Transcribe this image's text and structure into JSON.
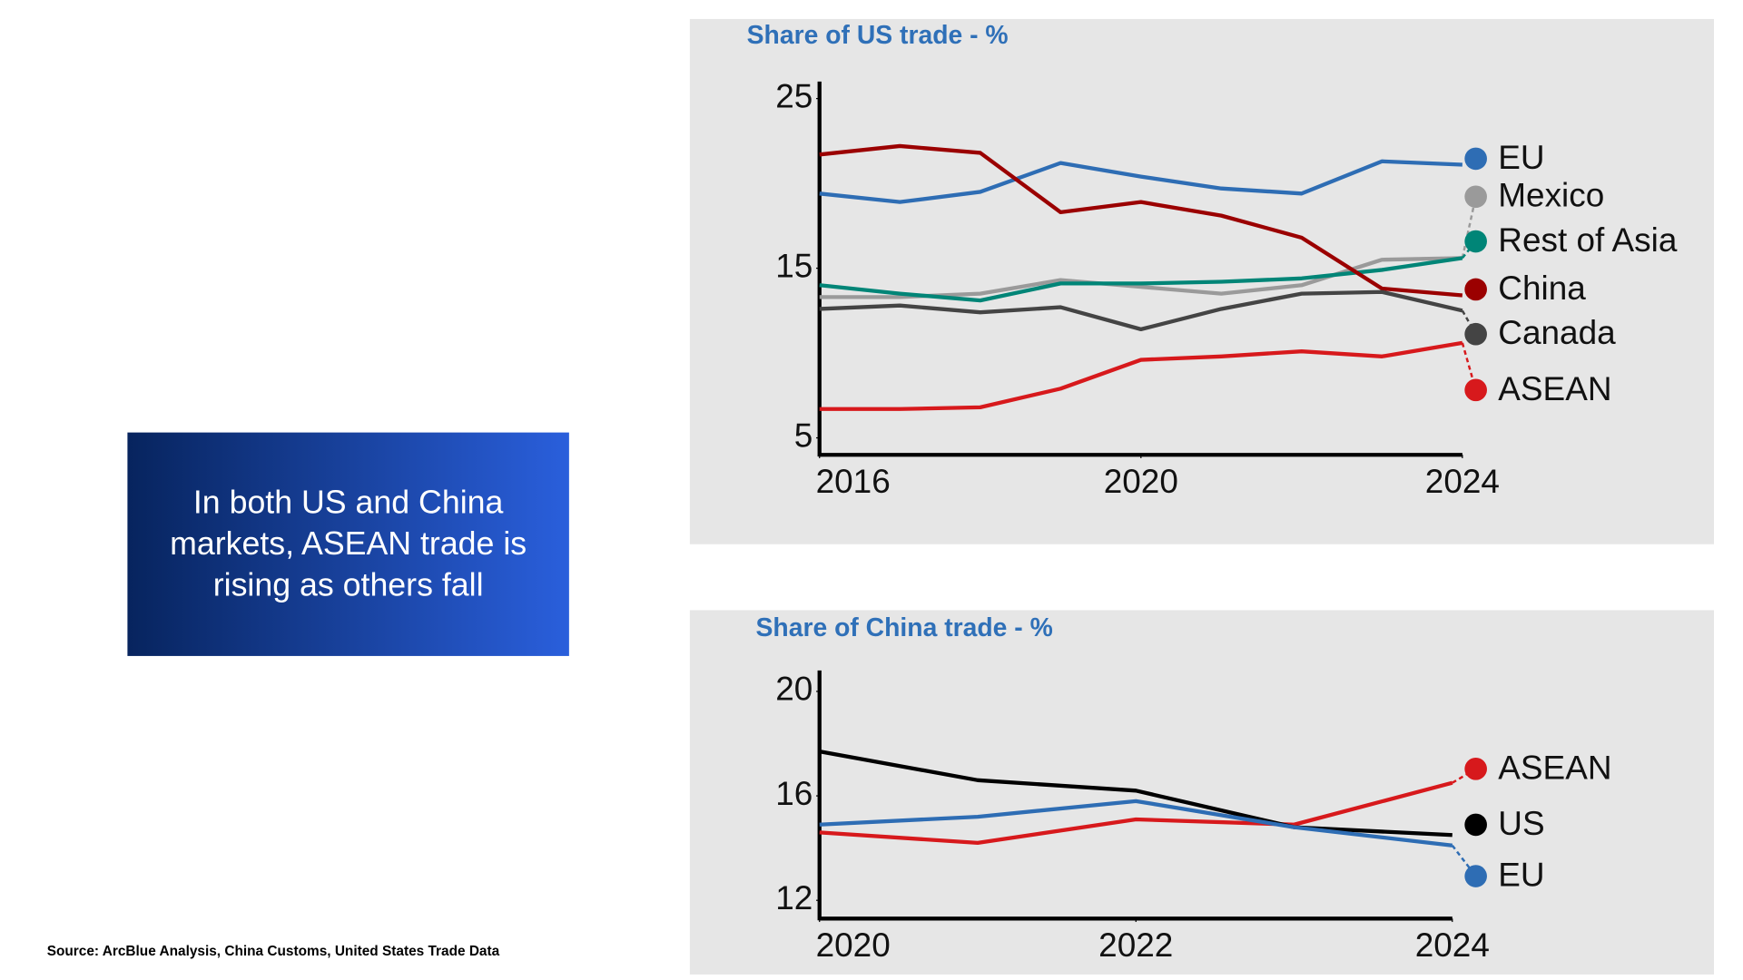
{
  "callout": "In both US and China markets, ASEAN trade is rising as others fall",
  "source": "Source: ArcBlue Analysis, China Customs, United States Trade Data",
  "chart_data": [
    {
      "type": "line",
      "title": "Share of US trade - %",
      "x": [
        2016,
        2017,
        2018,
        2019,
        2020,
        2021,
        2022,
        2023,
        2024
      ],
      "xlim": [
        2016,
        2024
      ],
      "xticks": [
        2016,
        2020,
        2024
      ],
      "ylim": [
        4,
        26
      ],
      "yticks": [
        5,
        15,
        25
      ],
      "series": [
        {
          "name": "EU",
          "color": "#2e6db4",
          "values": [
            19.4,
            18.9,
            19.5,
            21.2,
            20.4,
            19.7,
            19.4,
            21.3,
            21.1
          ]
        },
        {
          "name": "Mexico",
          "color": "#9a9a9a",
          "values": [
            13.3,
            13.3,
            13.5,
            14.3,
            13.9,
            13.5,
            14.0,
            15.5,
            15.6
          ]
        },
        {
          "name": "Rest of Asia",
          "color": "#008577",
          "values": [
            14.0,
            13.5,
            13.1,
            14.1,
            14.1,
            14.2,
            14.4,
            14.9,
            15.6
          ]
        },
        {
          "name": "China",
          "color": "#9b0000",
          "values": [
            21.7,
            22.2,
            21.8,
            18.3,
            18.9,
            18.1,
            16.8,
            13.8,
            13.4
          ]
        },
        {
          "name": "Canada",
          "color": "#444444",
          "values": [
            12.6,
            12.8,
            12.4,
            12.7,
            11.4,
            12.6,
            13.5,
            13.6,
            12.5
          ]
        },
        {
          "name": "ASEAN",
          "color": "#d7191c",
          "values": [
            6.7,
            6.7,
            6.8,
            7.9,
            9.6,
            9.8,
            10.1,
            9.8,
            10.6
          ]
        }
      ]
    },
    {
      "type": "line",
      "title": "Share of China trade - %",
      "x": [
        2020,
        2021,
        2022,
        2023,
        2024
      ],
      "xlim": [
        2020,
        2024
      ],
      "xticks": [
        2020,
        2022,
        2024
      ],
      "ylim": [
        11.3,
        20.8
      ],
      "yticks": [
        12,
        16,
        20
      ],
      "series": [
        {
          "name": "ASEAN",
          "color": "#d7191c",
          "values": [
            14.6,
            14.2,
            15.1,
            14.9,
            16.5
          ]
        },
        {
          "name": "US",
          "color": "#000000",
          "values": [
            17.7,
            16.6,
            16.2,
            14.8,
            14.5
          ]
        },
        {
          "name": "EU",
          "color": "#2e6db4",
          "values": [
            14.9,
            15.2,
            15.8,
            14.8,
            14.1
          ]
        }
      ]
    }
  ]
}
